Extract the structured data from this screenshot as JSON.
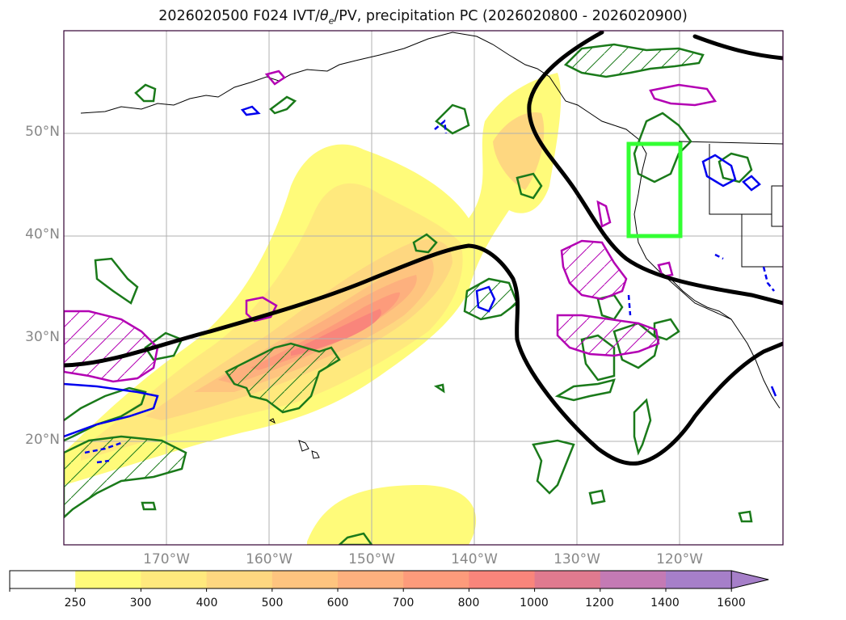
{
  "title": "2026020500 F024 IVT/θe/PV, precipitation PC (2026020800 - 2026020900)",
  "title_parts": {
    "prefix": "2026020500 F024 IVT/",
    "theta": "θ",
    "sub": "e",
    "suffix": "/PV, precipitation PC (2026020800 - 2026020900)"
  },
  "map": {
    "lat_labels": [
      "50°N",
      "40°N",
      "30°N",
      "20°N"
    ],
    "lon_labels": [
      "170°W",
      "160°W",
      "150°W",
      "140°W",
      "130°W",
      "120°W"
    ],
    "extent": {
      "lon_min": -180,
      "lon_max": -110,
      "lat_min": 10,
      "lat_max": 60
    },
    "highlight_box": {
      "lon_min": -125,
      "lon_max": -120,
      "lat_min": 40,
      "lat_max": 49
    }
  },
  "colorbar": {
    "ticks": [
      "250",
      "300",
      "400",
      "500",
      "600",
      "700",
      "800",
      "1000",
      "1200",
      "1400",
      "1600"
    ],
    "colors": [
      "#ffffff",
      "#fffb7a",
      "#ffe97d",
      "#fed780",
      "#fec47f",
      "#fdb07e",
      "#fd9b7b",
      "#f9857b",
      "#e07a8f",
      "#c47ab4",
      "#a67fc9"
    ],
    "extend": "max"
  },
  "colors": {
    "ivt_contour": "#000000",
    "pv_green": "#1a7a1a",
    "pv_magenta": "#b300b3",
    "theta_blue": "#0000ee",
    "box": "#33ff33"
  }
}
